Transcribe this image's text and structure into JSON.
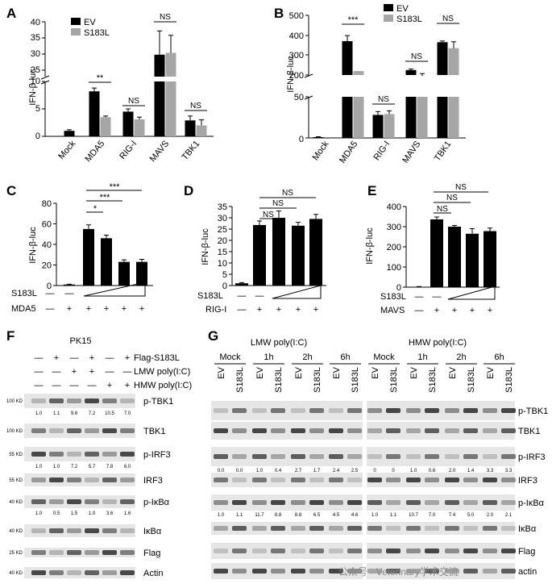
{
  "panelA": {
    "letter": "A",
    "ylabel": "IFN-β-luc",
    "legend": [
      {
        "name": "EV",
        "color": "#000000"
      },
      {
        "name": "S183L",
        "color": "#a6a6a6"
      }
    ],
    "yticks_upper": [
      "40",
      "35",
      "30",
      "25"
    ],
    "yticks_lower": [
      "10",
      "5",
      "0"
    ],
    "categories": [
      "Mock",
      "MDA5",
      "RIG-I",
      "MAVS",
      "TBK1"
    ],
    "sig": [
      "**",
      "NS",
      "NS",
      "NS"
    ]
  },
  "panelB": {
    "letter": "B",
    "ylabel": "IFN-β-luc",
    "legend": [
      {
        "name": "EV",
        "color": "#000000"
      },
      {
        "name": "S183L",
        "color": "#a6a6a6"
      }
    ],
    "yticks_upper": [
      "500",
      "400",
      "300",
      "200"
    ],
    "yticks_lower": [
      "50",
      "0"
    ],
    "categories": [
      "Mock",
      "MDA5",
      "RIG-I",
      "MAVS",
      "TBK1"
    ],
    "sig": [
      "***",
      "NS",
      "NS",
      "NS"
    ]
  },
  "panelC": {
    "letter": "C",
    "ylabel": "IFN-β-luc",
    "yticks": [
      "80",
      "60",
      "40",
      "20",
      "0"
    ],
    "sig": [
      "*",
      "***",
      "***"
    ],
    "row1_label": "S183L",
    "row1": [
      "—",
      "—"
    ],
    "row2_label": "MDA5",
    "row2": [
      "—",
      "+",
      "+",
      "+",
      "+",
      "+"
    ]
  },
  "panelD": {
    "letter": "D",
    "ylabel": "IFN-β-luc",
    "yticks": [
      "35",
      "30",
      "25",
      "20",
      "15",
      "10",
      "5",
      "0"
    ],
    "sig": [
      "NS",
      "NS",
      "NS"
    ],
    "row1_label": "S183L",
    "row1": [
      "—",
      "—"
    ],
    "row2_label": "RIG-I",
    "row2": [
      "—",
      "+",
      "+",
      "+",
      "+"
    ]
  },
  "panelE": {
    "letter": "E",
    "ylabel": "IFN-β-luc",
    "yticks": [
      "400",
      "300",
      "200",
      "100",
      "0"
    ],
    "sig": [
      "NS",
      "NS",
      "NS"
    ],
    "row1_label": "S183L",
    "row1": [
      "—",
      "—"
    ],
    "row2_label": "MAVS",
    "row2": [
      "—",
      "+",
      "+",
      "+",
      "+"
    ]
  },
  "panelF": {
    "letter": "F",
    "title": "PK15",
    "treat_labels": [
      "Flag-S183L",
      "LMW poly(I:C)",
      "HMW poly(I:C)"
    ],
    "treat_rows": [
      [
        "—",
        "+",
        "—",
        "+",
        "—",
        "+"
      ],
      [
        "—",
        "—",
        "+",
        "+",
        "—",
        "—"
      ],
      [
        "—",
        "—",
        "—",
        "—",
        "+",
        "+"
      ]
    ],
    "blots": [
      {
        "name": "p-TBK1",
        "kda": "100 KD",
        "quant": [
          "1.0",
          "1.1",
          "9.6",
          "7.2",
          "10.5",
          "7.0"
        ]
      },
      {
        "name": "TBK1",
        "kda": "100 KD",
        "quant": []
      },
      {
        "name": "p-IRF3",
        "kda": "55 KD",
        "quant": [
          "1.0",
          "1.0",
          "7.2",
          "5.7",
          "7.8",
          "6.0"
        ]
      },
      {
        "name": "IRF3",
        "kda": "55 KD",
        "quant": []
      },
      {
        "name": "p-IκBα",
        "kda": "40 KD",
        "quant": [
          "1.0",
          "0.5",
          "1.5",
          "1.0",
          "3.6",
          "1.6"
        ]
      },
      {
        "name": "IκBα",
        "kda": "40 KD",
        "quant": []
      },
      {
        "name": "Flag",
        "kda": "25 KD",
        "quant": []
      },
      {
        "name": "Actin",
        "kda": "40 KD",
        "quant": []
      }
    ]
  },
  "panelG": {
    "letter": "G",
    "left_title": "LMW poly(I:C)",
    "right_title": "HMW poly(I:C)",
    "groups": [
      "Mock",
      "1h",
      "2h",
      "6h"
    ],
    "lanes": [
      "EV",
      "S183L",
      "EV",
      "S183L",
      "EV",
      "S183L",
      "EV",
      "S183L"
    ],
    "blots": [
      {
        "name": "p-TBK1",
        "quant_left": [
          "1.0",
          "0.7",
          "6.7",
          "3.5",
          "6.6",
          "4.0",
          "4.7",
          "4.2"
        ],
        "quant_right": [
          "1.0",
          "0.9",
          "7.1",
          "3.2",
          "3.8",
          "2.1",
          "2.0",
          "1.4"
        ]
      },
      {
        "name": "TBK1",
        "quant_left": [],
        "quant_right": []
      },
      {
        "name": "p-IRF3",
        "quant_left": [
          "0.0",
          "0.0",
          "1.0",
          "0.4",
          "2.7",
          "1.7",
          "2.4",
          "2.5"
        ],
        "quant_right": [
          "0",
          "0",
          "1.0",
          "0.6",
          "2.0",
          "1.4",
          "3.3",
          "3.3"
        ]
      },
      {
        "name": "IRF3",
        "quant_left": [],
        "quant_right": []
      },
      {
        "name": "p-IκBα",
        "quant_left": [
          "1.0",
          "1.1",
          "11.7",
          "8.8",
          "8.8",
          "6.5",
          "4.5",
          "4.6"
        ],
        "quant_right": [
          "1.0",
          "1.1",
          "10.7",
          "7.0",
          "7.4",
          "5.0",
          "2.0",
          "2.1"
        ]
      },
      {
        "name": "IκBα",
        "quant_left": [],
        "quant_right": []
      },
      {
        "name": "Flag",
        "quant_left": [],
        "quant_right": []
      },
      {
        "name": "actin",
        "quant_left": [],
        "quant_right": []
      }
    ]
  },
  "watermark": "公众号 · Veterinary学术交流",
  "chart_data": [
    {
      "type": "bar",
      "panel": "A",
      "ylabel": "IFN-β-luc",
      "categories": [
        "Mock",
        "MDA5",
        "RIG-I",
        "MAVS",
        "TBK1"
      ],
      "series": [
        {
          "name": "EV",
          "values": [
            1,
            8.2,
            4.5,
            31,
            2.9
          ],
          "err": [
            0.2,
            0.6,
            0.5,
            6.5,
            0.8
          ]
        },
        {
          "name": "S183L",
          "values": [
            null,
            3.5,
            3.1,
            31.5,
            2.0
          ],
          "err": [
            0,
            0.2,
            0.4,
            4.8,
            1.0
          ]
        }
      ],
      "axis_break": [
        10,
        25
      ],
      "ylim": [
        0,
        40
      ]
    },
    {
      "type": "bar",
      "panel": "B",
      "ylabel": "IFN-β-luc",
      "categories": [
        "Mock",
        "MDA5",
        "RIG-I",
        "MAVS",
        "TBK1"
      ],
      "series": [
        {
          "name": "EV",
          "values": [
            1,
            370,
            28,
            225,
            365
          ],
          "err": [
            0.5,
            28,
            4,
            5,
            6
          ]
        },
        {
          "name": "S183L",
          "values": [
            null,
            220,
            29,
            195,
            335
          ],
          "err": [
            0,
            0,
            4,
            12,
            32
          ]
        }
      ],
      "axis_break": [
        50,
        200
      ],
      "ylim": [
        0,
        500
      ]
    },
    {
      "type": "bar",
      "panel": "C",
      "ylabel": "IFN-β-luc",
      "values": [
        1,
        55,
        46,
        23,
        23
      ],
      "err": [
        0.3,
        4,
        3,
        2,
        2.5
      ],
      "ylim": [
        0,
        80
      ]
    },
    {
      "type": "bar",
      "panel": "D",
      "ylabel": "IFN-β-luc",
      "values": [
        1,
        26.8,
        30,
        26.5,
        29.5
      ],
      "err": [
        0.3,
        1.8,
        3,
        1.5,
        2
      ],
      "ylim": [
        0,
        35
      ]
    },
    {
      "type": "bar",
      "panel": "E",
      "ylabel": "IFN-β-luc",
      "values": [
        2,
        336,
        300,
        265,
        278
      ],
      "err": [
        1,
        12,
        6,
        25,
        15
      ],
      "ylim": [
        0,
        400
      ]
    }
  ]
}
